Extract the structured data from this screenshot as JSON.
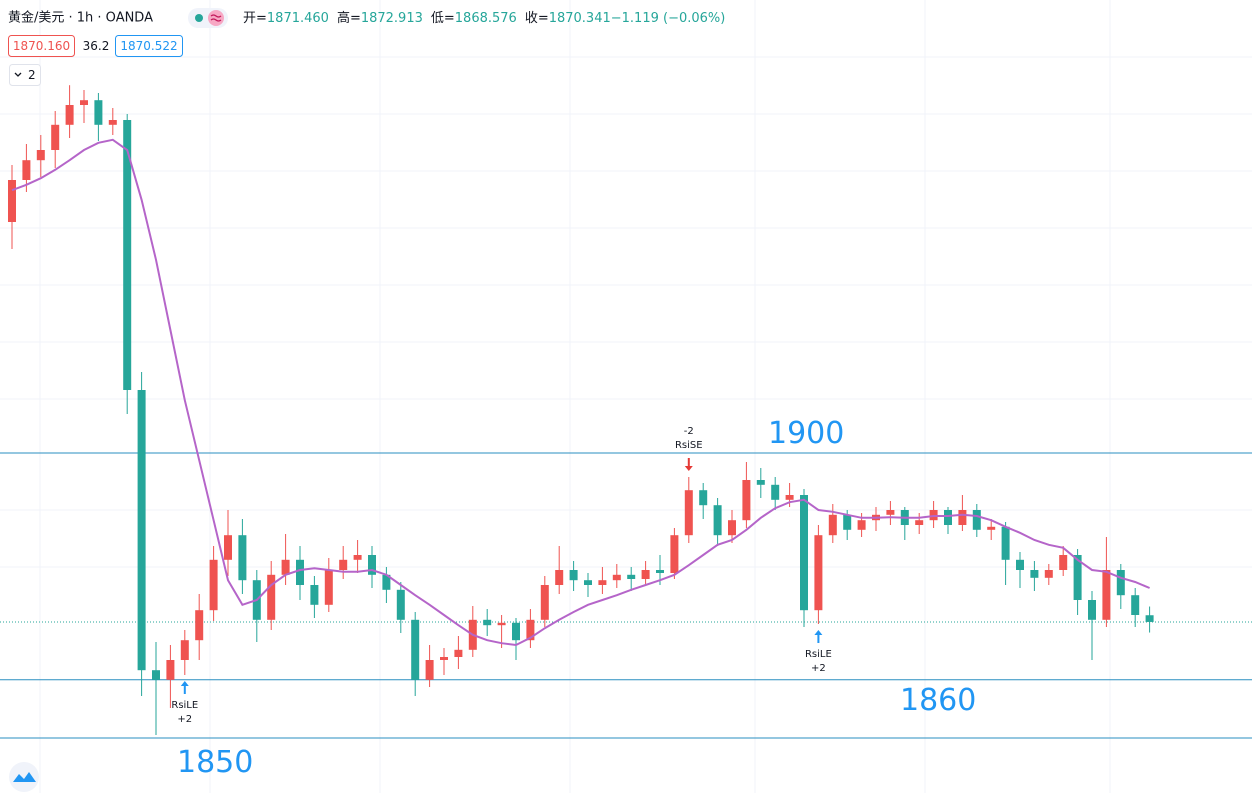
{
  "chart_data": {
    "type": "candlestick",
    "title": "黄金/美元 · 1h · OANDA",
    "ohlc_header": [
      {
        "label": "开=",
        "value": "1871.460"
      },
      {
        "label": "高=",
        "value": "1872.913"
      },
      {
        "label": "低=",
        "value": "1868.576"
      },
      {
        "label": "收=",
        "value": "1870.341"
      },
      {
        "label": "",
        "value": "−1.119 (−0.06%)"
      }
    ],
    "sell_price": "1870.160",
    "spread": "36.2",
    "buy_price": "1870.522",
    "indicator_count": "2",
    "up_color": "#ef5350",
    "down_color": "#26a69a",
    "ma_color": "#b565c9",
    "line_color": "#2a8fc0",
    "ylim": [
      1842,
      1974
    ],
    "candles": [
      [
        1937.0,
        1946.5,
        1932.5,
        1944.0
      ],
      [
        1944.0,
        1950.0,
        1942.0,
        1947.3
      ],
      [
        1947.3,
        1951.5,
        1944.5,
        1949.0
      ],
      [
        1949.0,
        1955.5,
        1946.0,
        1953.2
      ],
      [
        1953.2,
        1959.8,
        1951.0,
        1956.5
      ],
      [
        1956.5,
        1959.0,
        1953.5,
        1957.3
      ],
      [
        1957.3,
        1958.5,
        1950.5,
        1953.2
      ],
      [
        1953.2,
        1956.0,
        1951.5,
        1954.0
      ],
      [
        1954.0,
        1955.0,
        1905.0,
        1909.0
      ],
      [
        1909.0,
        1912.0,
        1858.0,
        1862.3
      ],
      [
        1862.3,
        1867.0,
        1851.5,
        1860.7
      ],
      [
        1860.7,
        1866.5,
        1856.0,
        1864.0
      ],
      [
        1864.0,
        1869.0,
        1861.5,
        1867.3
      ],
      [
        1867.3,
        1875.0,
        1864.0,
        1872.3
      ],
      [
        1872.3,
        1883.0,
        1870.5,
        1880.7
      ],
      [
        1880.7,
        1889.0,
        1878.0,
        1884.8
      ],
      [
        1884.8,
        1887.5,
        1875.0,
        1877.3
      ],
      [
        1877.3,
        1879.0,
        1867.0,
        1870.7
      ],
      [
        1870.7,
        1880.5,
        1869.0,
        1878.2
      ],
      [
        1878.2,
        1885.0,
        1876.5,
        1880.7
      ],
      [
        1880.7,
        1883.0,
        1874.0,
        1876.5
      ],
      [
        1876.5,
        1878.0,
        1871.0,
        1873.2
      ],
      [
        1873.2,
        1881.0,
        1872.0,
        1879.0
      ],
      [
        1879.0,
        1883.0,
        1877.5,
        1880.7
      ],
      [
        1880.7,
        1884.0,
        1878.5,
        1881.5
      ],
      [
        1881.5,
        1883.0,
        1876.0,
        1878.2
      ],
      [
        1878.2,
        1879.5,
        1873.5,
        1875.7
      ],
      [
        1875.7,
        1877.0,
        1868.5,
        1870.7
      ],
      [
        1870.7,
        1872.0,
        1858.0,
        1860.7
      ],
      [
        1860.7,
        1866.5,
        1859.5,
        1864.0
      ],
      [
        1864.0,
        1866.0,
        1861.5,
        1864.5
      ],
      [
        1864.5,
        1868.0,
        1862.5,
        1865.7
      ],
      [
        1865.7,
        1873.0,
        1864.5,
        1870.7
      ],
      [
        1870.7,
        1872.5,
        1868.0,
        1869.8
      ],
      [
        1869.8,
        1871.5,
        1866.0,
        1870.2
      ],
      [
        1870.2,
        1871.0,
        1864.0,
        1867.3
      ],
      [
        1867.3,
        1872.5,
        1866.0,
        1870.7
      ],
      [
        1870.7,
        1878.0,
        1869.5,
        1876.5
      ],
      [
        1876.5,
        1883.0,
        1875.0,
        1879.0
      ],
      [
        1879.0,
        1880.5,
        1875.5,
        1877.3
      ],
      [
        1877.3,
        1878.5,
        1874.5,
        1876.5
      ],
      [
        1876.5,
        1879.5,
        1875.0,
        1877.3
      ],
      [
        1877.3,
        1880.0,
        1876.0,
        1878.2
      ],
      [
        1878.2,
        1879.5,
        1875.5,
        1877.5
      ],
      [
        1877.5,
        1880.5,
        1876.5,
        1879.0
      ],
      [
        1879.0,
        1881.5,
        1876.5,
        1878.5
      ],
      [
        1878.5,
        1886.0,
        1877.5,
        1884.8
      ],
      [
        1884.8,
        1894.5,
        1883.5,
        1892.3
      ],
      [
        1892.3,
        1893.5,
        1887.5,
        1889.8
      ],
      [
        1889.8,
        1891.0,
        1883.0,
        1884.8
      ],
      [
        1884.8,
        1889.0,
        1883.5,
        1887.3
      ],
      [
        1887.3,
        1897.0,
        1886.0,
        1894.0
      ],
      [
        1894.0,
        1896.0,
        1891.0,
        1893.2
      ],
      [
        1893.2,
        1894.5,
        1889.0,
        1890.7
      ],
      [
        1890.7,
        1893.5,
        1889.5,
        1891.5
      ],
      [
        1891.5,
        1892.5,
        1869.5,
        1872.3
      ],
      [
        1872.3,
        1886.5,
        1870.0,
        1884.8
      ],
      [
        1884.8,
        1890.0,
        1883.5,
        1888.2
      ],
      [
        1888.2,
        1889.0,
        1884.0,
        1885.7
      ],
      [
        1885.7,
        1888.5,
        1884.5,
        1887.3
      ],
      [
        1887.3,
        1889.5,
        1885.5,
        1888.2
      ],
      [
        1888.2,
        1890.5,
        1886.5,
        1889.0
      ],
      [
        1889.0,
        1889.5,
        1884.0,
        1886.5
      ],
      [
        1886.5,
        1888.5,
        1885.0,
        1887.3
      ],
      [
        1887.3,
        1890.5,
        1886.0,
        1889.0
      ],
      [
        1889.0,
        1889.5,
        1885.0,
        1886.5
      ],
      [
        1886.5,
        1891.5,
        1885.5,
        1889.0
      ],
      [
        1889.0,
        1890.0,
        1884.5,
        1885.7
      ],
      [
        1885.7,
        1887.5,
        1884.0,
        1886.2
      ],
      [
        1886.2,
        1887.0,
        1876.5,
        1880.7
      ],
      [
        1880.7,
        1882.0,
        1876.0,
        1879.0
      ],
      [
        1879.0,
        1880.5,
        1875.5,
        1877.7
      ],
      [
        1877.7,
        1880.0,
        1876.5,
        1879.0
      ],
      [
        1879.0,
        1883.0,
        1878.0,
        1881.5
      ],
      [
        1881.5,
        1882.5,
        1871.5,
        1874.0
      ],
      [
        1874.0,
        1875.5,
        1864.0,
        1870.7
      ],
      [
        1870.7,
        1884.5,
        1869.5,
        1879.0
      ],
      [
        1879.0,
        1880.0,
        1872.5,
        1874.8
      ],
      [
        1874.8,
        1876.0,
        1869.5,
        1871.5
      ],
      [
        1871.46,
        1872.913,
        1868.576,
        1870.341
      ]
    ],
    "ma": [
      1942.3,
      1943.2,
      1944.3,
      1945.7,
      1947.3,
      1949.0,
      1950.2,
      1950.7,
      1949.0,
      1940.7,
      1930.7,
      1919.0,
      1907.3,
      1897.3,
      1887.3,
      1877.3,
      1873.2,
      1874.0,
      1876.5,
      1878.2,
      1879.0,
      1879.3,
      1879.0,
      1878.7,
      1878.7,
      1879.0,
      1878.2,
      1876.5,
      1874.8,
      1873.2,
      1871.5,
      1869.8,
      1868.2,
      1867.3,
      1866.8,
      1866.5,
      1867.7,
      1869.3,
      1870.7,
      1872.0,
      1873.2,
      1874.0,
      1874.8,
      1875.7,
      1876.5,
      1877.3,
      1878.2,
      1879.8,
      1881.5,
      1883.2,
      1884.0,
      1885.7,
      1887.7,
      1889.3,
      1890.3,
      1890.7,
      1889.0,
      1888.7,
      1888.2,
      1887.7,
      1887.7,
      1887.8,
      1887.7,
      1887.7,
      1888.0,
      1888.0,
      1888.2,
      1888.0,
      1887.3,
      1886.2,
      1885.2,
      1884.0,
      1883.2,
      1882.7,
      1880.7,
      1879.0,
      1878.7,
      1877.7,
      1877.0,
      1876.0
    ],
    "levels": [
      {
        "value": 1898.5,
        "label": "1900"
      },
      {
        "value": 1860.7,
        "label": "1860"
      },
      {
        "value": 1851.0,
        "label": "1850"
      }
    ],
    "signals": [
      {
        "at": 12,
        "side": "long",
        "name": "RsiLE",
        "qty": "+2"
      },
      {
        "at": 47,
        "side": "short",
        "name": "RsiSE",
        "qty": "-2"
      },
      {
        "at": 56,
        "side": "long",
        "name": "RsiLE",
        "qty": "+2"
      }
    ]
  }
}
